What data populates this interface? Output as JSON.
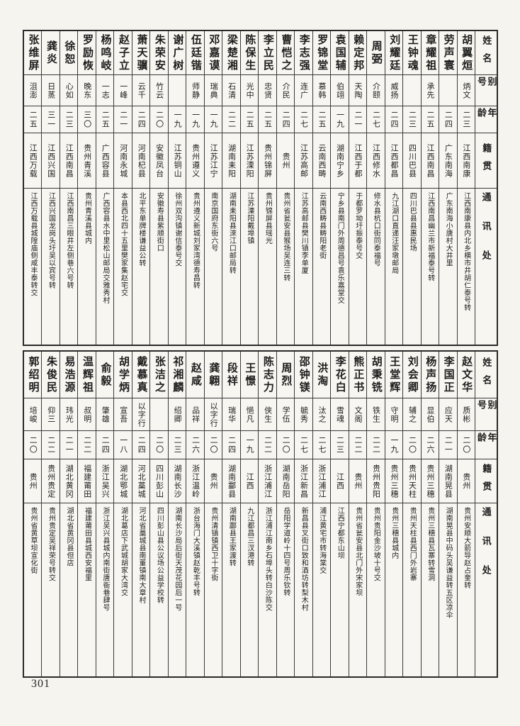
{
  "page_number": "301",
  "headers": {
    "name": "姓名",
    "alias": "别号",
    "age": "年龄",
    "native": "籍贯",
    "address": "通讯处"
  },
  "sections": [
    {
      "id": "top",
      "entries": [
        {
          "name": "胡翼烜",
          "alias": "炳文",
          "age": "二三",
          "native": "江西南康",
          "address": "江西南康县内北乡横市井胡仁泰号转"
        },
        {
          "name": "劳声寰",
          "alias": "",
          "age": "二四",
          "native": "广东南海",
          "address": "广东南海小唐村大井里"
        },
        {
          "name": "章耀祖",
          "alias": "承先",
          "age": "二五",
          "native": "江西南昌",
          "address": "江西南昌幽兰市新福泰号转"
        },
        {
          "name": "王钟魂",
          "alias": "",
          "age": "二三",
          "native": "四川巴县",
          "address": "四川巴县县惠民场"
        },
        {
          "name": "刘耀廷",
          "alias": "威扬",
          "age": "二四",
          "native": "江西都昌",
          "address": "九江湖口直递汪家墩邮局"
        },
        {
          "name": "周弼",
          "alias": "介颐",
          "age": "二七",
          "native": "江西修水",
          "address": "修水县杭口街同泰福号"
        },
        {
          "name": "赖定邦",
          "alias": "天陶",
          "age": "二一",
          "native": "江西于都",
          "address": "于都罗坳圩振泰号交"
        },
        {
          "name": "袁国辅",
          "alias": "伯翊",
          "age": "一九",
          "native": "湖南宁乡",
          "address": "宁乡县南门外周德昌号袁乐嘉堂交"
        },
        {
          "name": "罗锦堂",
          "alias": "慕韩",
          "age": "二五",
          "native": "云南西畴",
          "address": "云南西畴县畴阳老街"
        },
        {
          "name": "李志强",
          "alias": "连广",
          "age": "二七",
          "native": "江苏高邮",
          "address": "江苏高邮县樊川镇李单厦"
        },
        {
          "name": "曹恺之",
          "alias": "介民",
          "age": "二四",
          "native": "贵州",
          "address": "贵州省瓮安县猴场吴连三转"
        },
        {
          "name": "李立民",
          "alias": "忠贤",
          "age": "二五",
          "native": "贵州锦屏",
          "address": "贵州锦屏县瑶光"
        },
        {
          "name": "陈保生",
          "alias": "光中",
          "age": "二五",
          "native": "江苏溧阳",
          "address": "江苏溧阳戴埠镇"
        },
        {
          "name": "梁楚湘",
          "alias": "石清",
          "age": "二二",
          "native": "湖南耒阳",
          "address": "湖南耒阳县淶江口邮局转"
        },
        {
          "name": "邓嘉谟",
          "alias": "瑞典",
          "age": "一九",
          "native": "江苏江宁",
          "address": "南京国府东街六号"
        },
        {
          "name": "伍廷锴",
          "alias": "师静",
          "age": "一九",
          "native": "贵州遵义",
          "address": "贵州遵义新城刘家湾德寿昌转"
        },
        {
          "name": "谢广树",
          "alias": "",
          "age": "一九",
          "native": "江苏铜山",
          "address": "徐州双沟镇谢信泰号交"
        },
        {
          "name": "朱荣安",
          "alias": "竹云",
          "age": "二〇",
          "native": "安徽凤台",
          "address": "安徽寿县紫顺街口"
        },
        {
          "name": "萧天骥",
          "alias": "云千",
          "age": "二四",
          "native": "河南杞县",
          "address": "北平东单牌楼谦益公转"
        },
        {
          "name": "赵子立",
          "alias": "一峰",
          "age": "二一",
          "native": "河南永城",
          "address": "本县西北四十五里樊家集赵宅交"
        },
        {
          "name": "杨鸣岐",
          "alias": "一志",
          "age": "二五",
          "native": "广西容县",
          "address": "广西容县水中里松山邮局交雅秀村"
        },
        {
          "name": "罗励恢",
          "alias": "晚东",
          "age": "三〇",
          "native": "贵州青溪",
          "address": "贵州青溪县城内"
        },
        {
          "name": "徐恕",
          "alias": "心如",
          "age": "二三",
          "native": "江西南昌",
          "address": "江西南昌三眼井左侧巷六号转"
        },
        {
          "name": "龚炎",
          "alias": "日蒸",
          "age": "三一",
          "native": "江西兴国",
          "address": "江西兴国龙岗头圩吴以宾号转"
        },
        {
          "name": "张维屏",
          "alias": "沮澎",
          "age": "二五",
          "native": "江西万载",
          "address": "江西万载县城隍庙侧咸丰泰转交"
        }
      ]
    },
    {
      "id": "bottom",
      "entries": [
        {
          "name": "赵文华",
          "alias": "质彬",
          "age": "二〇",
          "native": "贵州",
          "address": "贵州安顺大箭导赵占奎转"
        },
        {
          "name": "李国正",
          "alias": "应天",
          "age": "二一",
          "native": "湖南晃县",
          "address": "湖南晃县中码头吴谦益转五区凉伞"
        },
        {
          "name": "杨声扬",
          "alias": "显伯",
          "age": "二六",
          "native": "贵州三穗",
          "address": "贵州三穗县瓦寨转雪洞"
        },
        {
          "name": "刘会卿",
          "alias": "辅之",
          "age": "二〇",
          "native": "贵州天柱",
          "address": "贵州天柱县西门外岩寨"
        },
        {
          "name": "王堂辉",
          "alias": "守明",
          "age": "一九",
          "native": "贵州三穗",
          "address": "贵州三穗县城内"
        },
        {
          "name": "胡秉铣",
          "alias": "铁生",
          "age": "二二",
          "native": "贵州贵阳",
          "address": "贵州贵阳金沙坡十号交"
        },
        {
          "name": "熊正书",
          "alias": "文阁",
          "age": "二二",
          "native": "贵州",
          "address": "贵州省瓮安县北门外宋家坝"
        },
        {
          "name": "李花白",
          "alias": "雪魂",
          "age": "二三",
          "native": "江西",
          "address": "江西宁都东山坝"
        },
        {
          "name": "洪淘",
          "alias": "汰之",
          "age": "二七",
          "native": "浙江浦江",
          "address": "浦江黄宅市转海棠交"
        },
        {
          "name": "邵钟镁",
          "alias": "毓秀",
          "age": "二七",
          "native": "浙江新昌",
          "address": "新昌县叉街口致和酒坊转梨木村"
        },
        {
          "name": "周烈",
          "alias": "学伍",
          "age": "二〇",
          "native": "湖南岳阳",
          "address": "岳阳学道岭十四号周乐钦转"
        },
        {
          "name": "陈志力",
          "alias": "侠生",
          "age": "二二",
          "native": "浙江浦江",
          "address": "浙江浦江南乡石埠头转白沙陈交"
        },
        {
          "name": "王憬",
          "alias": "悒凡",
          "age": "一九",
          "native": "江西",
          "address": "九江都昌三汊港转"
        },
        {
          "name": "段祥",
          "alias": "瑞华",
          "age": "二四",
          "native": "湖南酃县",
          "address": "湖南酃县王家渡转"
        },
        {
          "name": "龚翺",
          "alias": "以字行",
          "age": "二〇",
          "native": "贵州",
          "address": "贵州清镇镇西卫十字街"
        },
        {
          "name": "赵咸",
          "alias": "品祥",
          "age": "二六",
          "native": "浙江温岭",
          "address": "浙台海门大溪镇赵乾丰号转"
        },
        {
          "name": "祁湘麟",
          "alias": "绍卿",
          "age": "二三",
          "native": "湖南长沙",
          "address": "湖南长沙局后街天茂花园后一号"
        },
        {
          "name": "张洁之",
          "alias": "",
          "age": "二〇",
          "native": "四川彭山",
          "address": "四川彭山县公议场公益学校转"
        },
        {
          "name": "戴慕真",
          "alias": "以字行",
          "age": "二四",
          "native": "河北藁城",
          "address": "河北省藁城县南董镇南大章村"
        },
        {
          "name": "胡学炳",
          "alias": "宣吾",
          "age": "一八",
          "native": "湖北鄂城",
          "address": "湖北葛店下武城胡家大湾交"
        },
        {
          "name": "俞毅",
          "alias": "肇雄",
          "age": "二四",
          "native": "浙江吴兴",
          "address": "浙江吴兴县城内南街唐衙巷肆号"
        },
        {
          "name": "温辉祖",
          "alias": "叔明",
          "age": "二二",
          "native": "福建莆田",
          "address": "福建莆田县城西安福里"
        },
        {
          "name": "易浩源",
          "alias": "玮光",
          "age": "二一",
          "native": "湖北黄冈",
          "address": "湖北省黄冈县但店"
        },
        {
          "name": "朱俊民",
          "alias": "仰三",
          "age": "二二",
          "native": "贵州贵定",
          "address": "贵州贵定吴祥荣号转交"
        },
        {
          "name": "郭绍明",
          "alias": "培峻",
          "age": "二〇",
          "native": "贵州",
          "address": "贵州省黄草坝宣化街"
        }
      ]
    }
  ]
}
